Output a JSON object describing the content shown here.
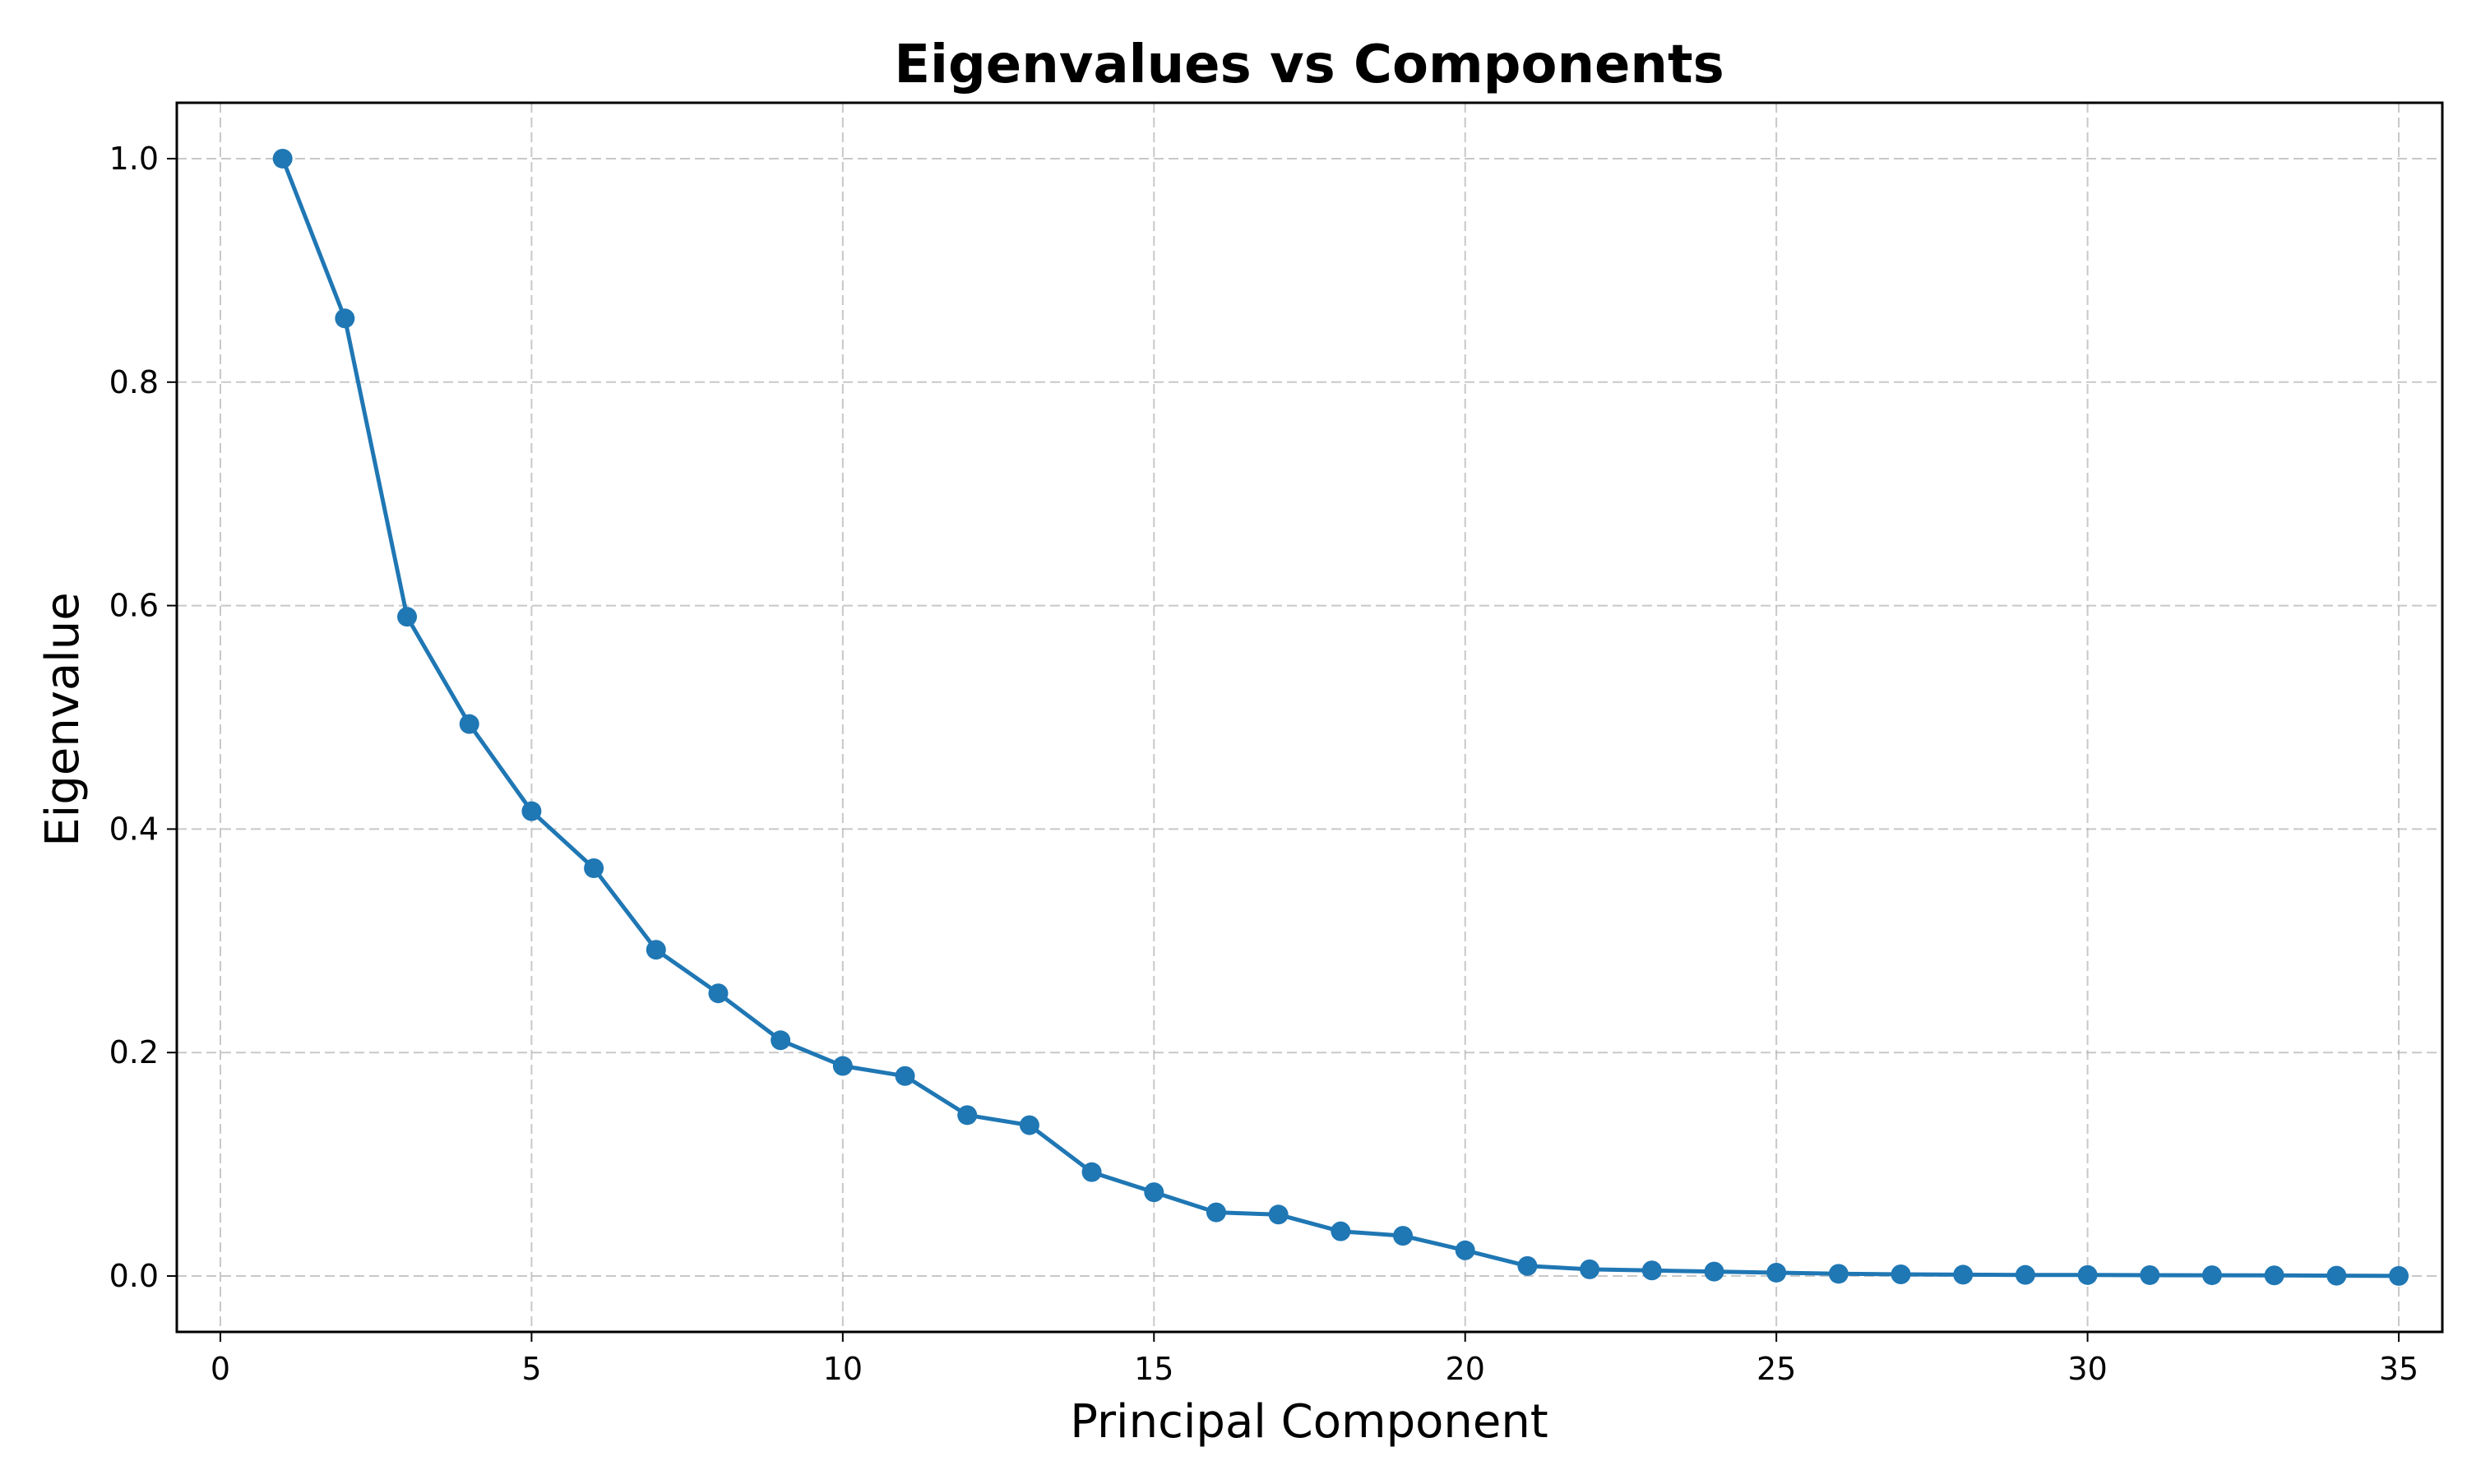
{
  "chart_data": {
    "type": "line",
    "title": "Eigenvalues vs Components",
    "xlabel": "Principal Component",
    "ylabel": "Eigenvalue",
    "xlim": [
      -0.7,
      35.7
    ],
    "ylim": [
      -0.05,
      1.05
    ],
    "xticks": [
      0,
      5,
      10,
      15,
      20,
      25,
      30,
      35
    ],
    "xtick_labels": [
      "0",
      "5",
      "10",
      "15",
      "20",
      "25",
      "30",
      "35"
    ],
    "yticks": [
      0.0,
      0.2,
      0.4,
      0.6,
      0.8,
      1.0
    ],
    "ytick_labels": [
      "0.0",
      "0.2",
      "0.4",
      "0.6",
      "0.8",
      "1.0"
    ],
    "grid": true,
    "grid_style": "dashed",
    "marker": "circle",
    "series": [
      {
        "color": "#1f77b4",
        "x": [
          1,
          2,
          3,
          4,
          5,
          6,
          7,
          8,
          9,
          10,
          11,
          12,
          13,
          14,
          15,
          16,
          17,
          18,
          19,
          20,
          21,
          22,
          23,
          24,
          25,
          26,
          27,
          28,
          29,
          30,
          31,
          32,
          33,
          34,
          35
        ],
        "y": [
          1.0,
          0.857,
          0.59,
          0.494,
          0.416,
          0.365,
          0.292,
          0.253,
          0.211,
          0.188,
          0.179,
          0.144,
          0.135,
          0.093,
          0.075,
          0.057,
          0.055,
          0.04,
          0.036,
          0.023,
          0.009,
          0.006,
          0.005,
          0.004,
          0.003,
          0.002,
          0.0015,
          0.0012,
          0.001,
          0.0009,
          0.0008,
          0.0007,
          0.0006,
          0.0003,
          0.0001
        ]
      }
    ]
  }
}
